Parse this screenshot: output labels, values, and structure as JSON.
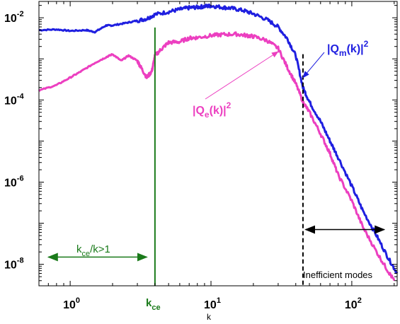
{
  "chart_data": {
    "type": "line",
    "title": "",
    "xlabel": "k",
    "ylabel": "",
    "xscale": "log",
    "yscale": "log",
    "xlim": [
      0.6,
      210
    ],
    "ylim": [
      3e-09,
      0.025
    ],
    "grid": false,
    "x_ticks": [
      {
        "value": 1,
        "base": "10",
        "exp": "0"
      },
      {
        "value": 10,
        "base": "10",
        "exp": "1"
      },
      {
        "value": 100,
        "base": "10",
        "exp": "2"
      }
    ],
    "y_ticks": [
      {
        "value": 0.01,
        "base": "10",
        "exp": "-2"
      },
      {
        "value": 0.0001,
        "base": "10",
        "exp": "-4"
      },
      {
        "value": 1e-06,
        "base": "10",
        "exp": "-6"
      },
      {
        "value": 1e-08,
        "base": "10",
        "exp": "-8"
      }
    ],
    "series": [
      {
        "name": "|Q_m(k)|^2",
        "color": "#1f1fe0",
        "x": [
          0.6,
          0.8,
          1.0,
          1.3,
          1.5,
          1.8,
          2.0,
          2.5,
          3.0,
          3.5,
          4.0,
          5.0,
          6.0,
          7.0,
          8.0,
          9.0,
          10.0,
          12.0,
          14.0,
          17.0,
          20.0,
          25.0,
          30.0,
          35.0,
          40.0,
          45.0,
          50.0,
          60.0,
          70.0,
          80.0,
          100.0,
          120.0,
          150.0,
          180.0,
          210.0
        ],
        "y": [
          0.005,
          0.0052,
          0.0048,
          0.005,
          0.0045,
          0.0065,
          0.0065,
          0.0075,
          0.0085,
          0.0095,
          0.012,
          0.014,
          0.016,
          0.0175,
          0.018,
          0.019,
          0.0195,
          0.018,
          0.017,
          0.015,
          0.0125,
          0.009,
          0.006,
          0.003,
          0.0012,
          0.0002,
          9e-05,
          3e-05,
          1e-05,
          4e-06,
          8e-07,
          2e-07,
          5e-08,
          1.5e-08,
          6e-09
        ]
      },
      {
        "name": "|Q_e(k)|^2",
        "color": "#ec3fc0",
        "x": [
          0.6,
          0.8,
          1.0,
          1.2,
          1.5,
          1.8,
          2.0,
          2.3,
          2.6,
          3.0,
          3.2,
          3.5,
          3.8,
          4.0,
          4.5,
          5.0,
          6.0,
          7.0,
          8.0,
          10.0,
          12.0,
          15.0,
          18.0,
          20.0,
          25.0,
          30.0,
          35.0,
          40.0,
          45.0,
          50.0,
          60.0,
          70.0,
          80.0,
          100.0,
          120.0,
          150.0,
          180.0,
          200.0
        ],
        "y": [
          0.00017,
          0.00023,
          0.00035,
          0.0005,
          0.0008,
          0.0011,
          0.0013,
          0.0009,
          0.0012,
          0.0009,
          0.0006,
          0.00035,
          0.0005,
          0.0012,
          0.0018,
          0.0025,
          0.0026,
          0.0032,
          0.0033,
          0.0037,
          0.0039,
          0.004,
          0.0037,
          0.0035,
          0.0028,
          0.0018,
          0.0006,
          0.00025,
          9e-05,
          5e-05,
          1.5e-05,
          5e-06,
          1.5e-06,
          3.5e-07,
          8e-08,
          2e-08,
          7e-09,
          4e-09
        ]
      }
    ],
    "annotations": {
      "qm_label": {
        "text": "|Q",
        "sub": "m",
        "mid": "(k)|",
        "sup": "2",
        "color": "#1f1fe0",
        "arrow_to": [
          45,
          0.00035
        ]
      },
      "qe_label": {
        "text": "|Q",
        "sub": "e",
        "mid": "(k)|",
        "sup": "2",
        "color": "#ec3fc0",
        "arrow_to": [
          30,
          0.0015
        ]
      },
      "kce_label": {
        "text": "k",
        "sub": "ce",
        "color": "#1a7a1a"
      },
      "kce_ratio": {
        "text": "k",
        "sub": "ce",
        "rest": "/k>1",
        "color": "#1a7a1a"
      },
      "inefficient": {
        "text": "Inefficient modes"
      }
    },
    "vlines": [
      {
        "name": "kce-line",
        "x": 4.0,
        "color": "#1a7a1a",
        "dashed": false,
        "y_from": 3e-09,
        "y_to": 0.0058
      },
      {
        "name": "inefficient-threshold-line",
        "x": 45.0,
        "color": "#000000",
        "dashed": true,
        "y_from": 3e-09,
        "y_to": 0.0013
      }
    ],
    "arrows": [
      {
        "name": "kce-ratio-arrow",
        "x_from": 0.7,
        "x_to": 3.5,
        "y": 1.5e-08,
        "color": "#1a7a1a"
      },
      {
        "name": "inefficient-arrow",
        "x_from": 47,
        "x_to": 170,
        "y": 7e-08,
        "color": "#000000"
      }
    ]
  }
}
